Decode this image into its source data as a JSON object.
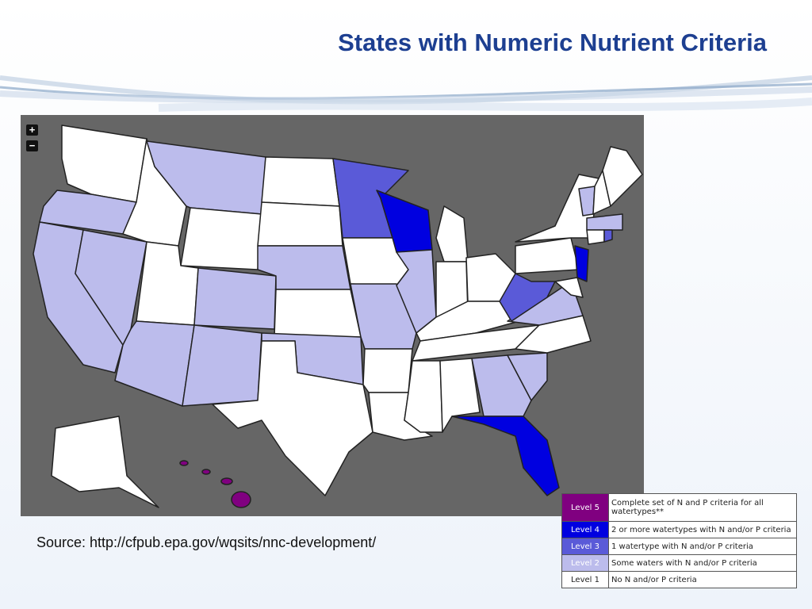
{
  "header": {
    "title": "States with Numeric Nutrient Criteria"
  },
  "map": {
    "zoom_in": "+",
    "zoom_out": "−"
  },
  "source": "Source: http://cfpub.epa.gov/wqsits/nnc-development/",
  "legend": {
    "rows": [
      {
        "level": "Level 5",
        "description": "Complete set of N and P criteria for all watertypes**",
        "color": "#800080"
      },
      {
        "level": "Level 4",
        "description": "2 or more watertypes with N and/or P criteria",
        "color": "#0000e0"
      },
      {
        "level": "Level 3",
        "description": "1 watertype with N and/or P criteria",
        "color": "#5a5ad8"
      },
      {
        "level": "Level 2",
        "description": "Some waters with N and/or P criteria",
        "color": "#bcbcec"
      },
      {
        "level": "Level 1",
        "description": "No N and/or P criteria",
        "color": "#ffffff"
      }
    ]
  }
}
